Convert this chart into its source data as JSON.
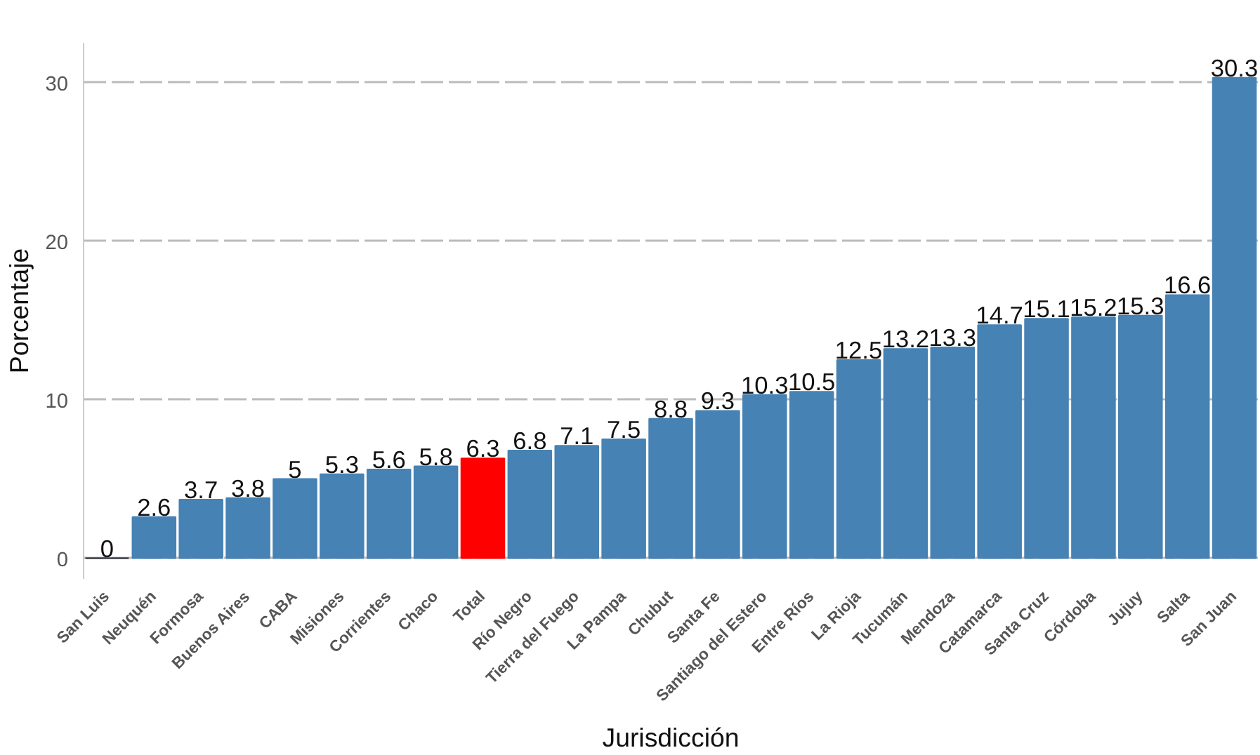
{
  "chart_data": {
    "type": "bar",
    "xlabel": "Jurisdicción",
    "ylabel": "Porcentaje",
    "categories": [
      "San Luis",
      "Neuquén",
      "Formosa",
      "Buenos Aires",
      "CABA",
      "Misiones",
      "Corrientes",
      "Chaco",
      "Total",
      "Río Negro",
      "Tierra del Fuego",
      "La Pampa",
      "Chubut",
      "Santa Fe",
      "Santiago del Estero",
      "Entre Ríos",
      "La Rioja",
      "Tucumán",
      "Mendoza",
      "Catamarca",
      "Santa Cruz",
      "Córdoba",
      "Jujuy",
      "Salta",
      "San Juan"
    ],
    "values": [
      0,
      2.6,
      3.7,
      3.8,
      5,
      5.3,
      5.6,
      5.8,
      6.3,
      6.8,
      7.1,
      7.5,
      8.8,
      9.3,
      10.3,
      10.5,
      12.5,
      13.2,
      13.3,
      14.7,
      15.1,
      15.2,
      15.3,
      16.6,
      30.3
    ],
    "colors": [
      "#4682b4",
      "#4682b4",
      "#4682b4",
      "#4682b4",
      "#4682b4",
      "#4682b4",
      "#4682b4",
      "#4682b4",
      "#ff0000",
      "#4682b4",
      "#4682b4",
      "#4682b4",
      "#4682b4",
      "#4682b4",
      "#4682b4",
      "#4682b4",
      "#4682b4",
      "#4682b4",
      "#4682b4",
      "#4682b4",
      "#4682b4",
      "#4682b4",
      "#4682b4",
      "#4682b4",
      "#4682b4"
    ],
    "ylim": [
      -1.3,
      32.5
    ],
    "yticks": [
      0,
      10,
      20,
      30
    ],
    "grid": "y",
    "data_labels": true
  }
}
